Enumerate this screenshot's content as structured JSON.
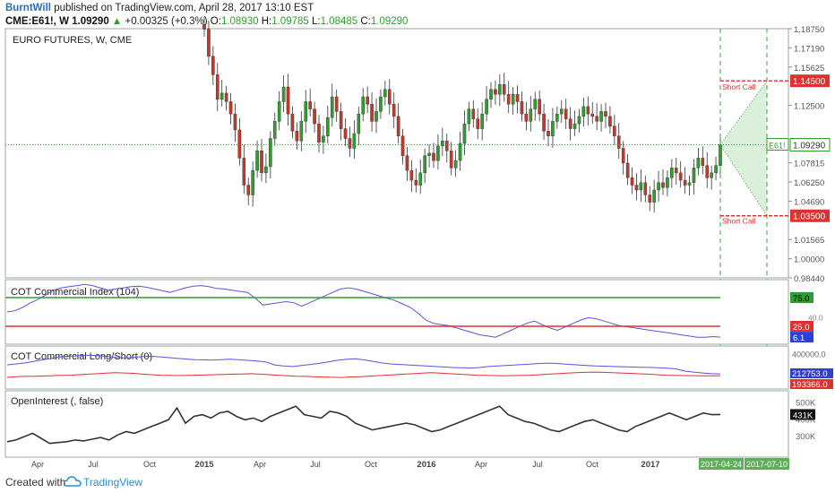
{
  "header": {
    "user": "BurntWill",
    "published": "published on TradingView.com, April 28, 2017 13:10 EST",
    "symbol": "CME:E61!,",
    "interval": "W",
    "price": "1.09290",
    "change": "+0.00325 (+0.3%)",
    "o_label": "O:",
    "o_value": "1.08930",
    "h_label": "H:",
    "h_value": "1.09785",
    "l_label": "L:",
    "l_value": "1.08485",
    "c_label": "C:",
    "c_value": "1.09290"
  },
  "colors": {
    "up": "#2e9e2e",
    "down": "#c0392b",
    "index_line": "#5555dd",
    "red_line": "#e03030",
    "oi_line": "#333333",
    "projection": "#3aa53a"
  },
  "footer": {
    "created": "Created with",
    "brand": "TradingView",
    "logo_icon": "tradingview-cloud-icon"
  },
  "chart_data": [
    {
      "type": "candlestick",
      "title": "EURO FUTURES, W, CME",
      "ylim": [
        0.9844,
        1.1875
      ],
      "price_ticks": [
        "1.18750",
        "1.17190",
        "1.15625",
        "1.14500",
        "1.12500",
        "1.09290",
        "1.07815",
        "1.06250",
        "1.04690",
        "1.03500",
        "1.01565",
        "1.00000",
        "0.98440"
      ],
      "tick_values": [
        1.1875,
        1.1719,
        1.15625,
        1.145,
        1.125,
        1.0929,
        1.07815,
        1.0625,
        1.0469,
        1.035,
        1.01565,
        1.0,
        0.9844
      ],
      "last_price": 1.0929,
      "last_price_label": "E61!",
      "last_price_value": "1.09290",
      "levels": [
        {
          "value": 1.145,
          "label": "Short Call",
          "tag": "1.14500"
        },
        {
          "value": 1.035,
          "label": "Short Call",
          "tag": "1.03500"
        }
      ],
      "projection": {
        "from_date": "2017-04-24",
        "to_date": "2017-07-10",
        "start": 1.0929,
        "high": 1.145,
        "low": 1.035
      },
      "x_labels": [
        "Apr",
        "Jul",
        "Oct",
        "2015",
        "Apr",
        "Jul",
        "Oct",
        "2016",
        "Apr",
        "Jul",
        "Oct",
        "2017"
      ],
      "date_tags": [
        "2017-04-24",
        "2017-07-10"
      ],
      "closes": [
        1.187,
        1.165,
        1.15,
        1.13,
        1.135,
        1.128,
        1.118,
        1.105,
        1.082,
        1.06,
        1.052,
        1.072,
        1.088,
        1.07,
        1.075,
        1.098,
        1.112,
        1.128,
        1.14,
        1.118,
        1.104,
        1.096,
        1.112,
        1.128,
        1.122,
        1.11,
        1.095,
        1.1,
        1.115,
        1.132,
        1.12,
        1.106,
        1.098,
        1.09,
        1.102,
        1.118,
        1.132,
        1.126,
        1.112,
        1.12,
        1.132,
        1.138,
        1.126,
        1.116,
        1.1,
        1.084,
        1.072,
        1.064,
        1.06,
        1.07,
        1.084,
        1.086,
        1.08,
        1.092,
        1.096,
        1.088,
        1.074,
        1.08,
        1.094,
        1.11,
        1.122,
        1.114,
        1.106,
        1.118,
        1.13,
        1.138,
        1.134,
        1.142,
        1.134,
        1.126,
        1.134,
        1.128,
        1.118,
        1.112,
        1.122,
        1.13,
        1.118,
        1.104,
        1.1,
        1.112,
        1.118,
        1.122,
        1.114,
        1.106,
        1.11,
        1.116,
        1.124,
        1.118,
        1.116,
        1.112,
        1.12,
        1.116,
        1.108,
        1.1,
        1.09,
        1.078,
        1.066,
        1.06,
        1.056,
        1.062,
        1.052,
        1.046,
        1.056,
        1.062,
        1.058,
        1.066,
        1.074,
        1.07,
        1.064,
        1.06,
        1.062,
        1.074,
        1.082,
        1.076,
        1.066,
        1.07,
        1.076,
        1.0929
      ]
    },
    {
      "type": "line",
      "title": "COT Commercial Index (104)",
      "ylim": [
        0,
        100
      ],
      "reference_lines": [
        75.0,
        25.0
      ],
      "tags": [
        "75.0",
        "25.0",
        "6.1"
      ],
      "axis_label": "40.0",
      "values": [
        50,
        52,
        58,
        66,
        72,
        80,
        88,
        92,
        94,
        96,
        98,
        96,
        92,
        88,
        90,
        92,
        94,
        95,
        93,
        90,
        87,
        84,
        88,
        92,
        95,
        96,
        94,
        91,
        90,
        88,
        86,
        84,
        74,
        62,
        64,
        66,
        68,
        66,
        60,
        66,
        72,
        78,
        84,
        90,
        92,
        90,
        86,
        82,
        78,
        74,
        70,
        64,
        58,
        48,
        36,
        30,
        28,
        26,
        22,
        18,
        14,
        10,
        8,
        6,
        12,
        18,
        24,
        30,
        34,
        28,
        22,
        18,
        24,
        30,
        36,
        40,
        38,
        34,
        30,
        26,
        24,
        22,
        20,
        18,
        16,
        14,
        12,
        10,
        8,
        6,
        6,
        7,
        6.1
      ]
    },
    {
      "type": "line",
      "title": "COT Commercial Long/Short (0)",
      "ylim": [
        100000,
        450000
      ],
      "axis_label": "400000.0",
      "tags": [
        "212753.0",
        "193366.0"
      ],
      "series": [
        {
          "values": [
            300000,
            310000,
            320000,
            335000,
            350000,
            365000,
            380000,
            385000,
            390000,
            395000,
            392000,
            385000,
            375000,
            368000,
            372000,
            380000,
            385000,
            380000,
            372000,
            365000,
            358000,
            352000,
            350000,
            348000,
            352000,
            356000,
            350000,
            345000,
            338000,
            330000,
            300000,
            290000,
            285000,
            295000,
            305000,
            315000,
            330000,
            345000,
            355000,
            360000,
            350000,
            335000,
            320000,
            310000,
            305000,
            300000,
            295000,
            290000,
            285000,
            280000,
            275000,
            272000,
            270000,
            275000,
            285000,
            290000,
            295000,
            300000,
            305000,
            310000,
            315000,
            318000,
            312000,
            306000,
            300000,
            295000,
            290000,
            288000,
            285000,
            283000,
            280000,
            278000,
            276000,
            272000,
            268000,
            262000,
            240000,
            230000,
            222000,
            215000,
            212753
          ]
        },
        {
          "values": [
            180000,
            185000,
            188000,
            190000,
            192000,
            195000,
            198000,
            200000,
            205000,
            210000,
            215000,
            220000,
            225000,
            222000,
            218000,
            210000,
            205000,
            200000,
            198000,
            196000,
            198000,
            200000,
            202000,
            205000,
            208000,
            210000,
            212000,
            215000,
            210000,
            205000,
            200000,
            195000,
            190000,
            188000,
            185000,
            182000,
            180000,
            178000,
            182000,
            186000,
            190000,
            195000,
            200000,
            205000,
            210000,
            215000,
            220000,
            225000,
            220000,
            215000,
            210000,
            205000,
            200000,
            198000,
            196000,
            194000,
            196000,
            198000,
            200000,
            205000,
            210000,
            215000,
            220000,
            225000,
            228000,
            230000,
            228000,
            225000,
            222000,
            218000,
            214000,
            210000,
            205000,
            200000,
            198000,
            196000,
            195000,
            194000,
            193500,
            193366
          ]
        }
      ]
    },
    {
      "type": "line",
      "title": "OpenInterest (, false)",
      "ylim": [
        200000,
        550000
      ],
      "axis_labels": [
        "500K",
        "400K",
        "300K"
      ],
      "tag": "431K",
      "values": [
        270000,
        280000,
        300000,
        320000,
        290000,
        260000,
        265000,
        270000,
        280000,
        275000,
        285000,
        295000,
        280000,
        310000,
        330000,
        320000,
        340000,
        360000,
        380000,
        400000,
        470000,
        380000,
        420000,
        430000,
        410000,
        440000,
        450000,
        420000,
        400000,
        410000,
        390000,
        420000,
        440000,
        460000,
        480000,
        430000,
        420000,
        410000,
        450000,
        440000,
        420000,
        380000,
        360000,
        340000,
        350000,
        360000,
        370000,
        380000,
        370000,
        350000,
        330000,
        340000,
        360000,
        380000,
        400000,
        420000,
        440000,
        460000,
        480000,
        430000,
        410000,
        390000,
        380000,
        360000,
        340000,
        330000,
        350000,
        370000,
        390000,
        400000,
        380000,
        360000,
        340000,
        330000,
        360000,
        380000,
        400000,
        420000,
        440000,
        420000,
        400000,
        420000,
        440000,
        430000,
        431000
      ]
    }
  ]
}
